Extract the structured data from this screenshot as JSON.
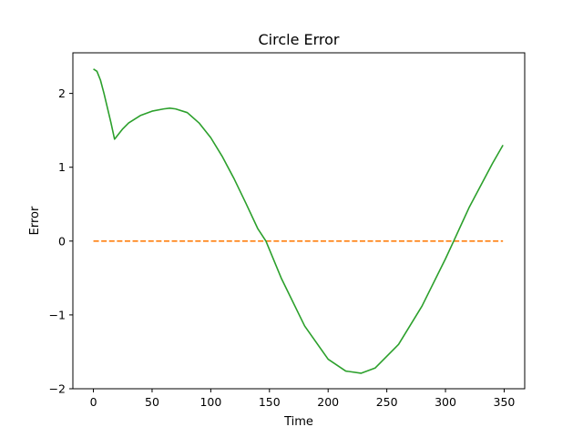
{
  "chart_data": {
    "type": "line",
    "title": "Circle Error",
    "xlabel": "Time",
    "ylabel": "Error",
    "xlim": [
      -17.5,
      367.5
    ],
    "ylim": [
      -2.0,
      2.55
    ],
    "xticks": [
      0,
      50,
      100,
      150,
      200,
      250,
      300,
      350
    ],
    "xtick_labels": [
      "0",
      "50",
      "100",
      "150",
      "200",
      "250",
      "300",
      "350"
    ],
    "yticks": [
      -2,
      -1,
      0,
      1,
      2
    ],
    "ytick_labels": [
      "−2",
      "−1",
      "0",
      "1",
      "2"
    ],
    "grid": false,
    "series": [
      {
        "color": "#ff7f0e",
        "style": "dashed",
        "x": [
          0,
          349
        ],
        "y": [
          0.0,
          0.0
        ]
      },
      {
        "color": "#2ca02c",
        "style": "solid",
        "x": [
          0,
          3,
          6,
          9,
          12,
          15,
          18,
          20,
          25,
          30,
          40,
          50,
          60,
          65,
          70,
          80,
          90,
          100,
          110,
          120,
          130,
          140,
          147,
          160,
          180,
          200,
          215,
          228,
          240,
          260,
          280,
          300,
          307,
          320,
          340,
          349
        ],
        "y": [
          2.33,
          2.3,
          2.18,
          2.0,
          1.8,
          1.6,
          1.38,
          1.42,
          1.52,
          1.6,
          1.7,
          1.76,
          1.79,
          1.8,
          1.79,
          1.74,
          1.6,
          1.4,
          1.14,
          0.84,
          0.51,
          0.17,
          0.0,
          -0.5,
          -1.15,
          -1.6,
          -1.76,
          -1.79,
          -1.72,
          -1.4,
          -0.88,
          -0.24,
          0.0,
          0.45,
          1.05,
          1.3
        ]
      }
    ]
  }
}
